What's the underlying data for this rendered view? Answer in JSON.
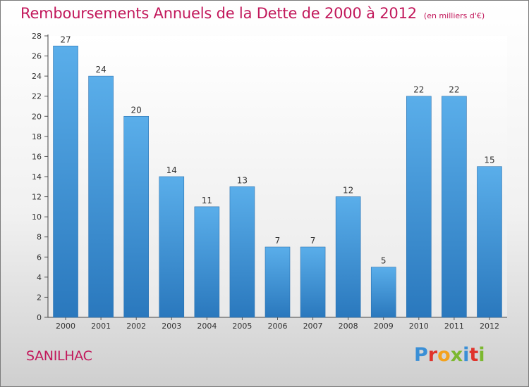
{
  "header": {
    "title": "Remboursements Annuels de la Dette de 2000 à 2012",
    "subtitle": "(en milliers d'€)"
  },
  "footer": {
    "commune": "SANILHAC",
    "logo_text": "Proxiti",
    "logo_colors": [
      "#3a8fd6",
      "#e0342c",
      "#f4a21d",
      "#7cb82f",
      "#3a8fd6",
      "#e0342c",
      "#7cb82f"
    ]
  },
  "chart_data": {
    "type": "bar",
    "title": "Remboursements Annuels de la Dette de 2000 à 2012",
    "subtitle": "(en milliers d'€)",
    "categories": [
      "2000",
      "2001",
      "2002",
      "2003",
      "2004",
      "2005",
      "2006",
      "2007",
      "2008",
      "2009",
      "2010",
      "2011",
      "2012"
    ],
    "values": [
      27,
      24,
      20,
      14,
      11,
      13,
      7,
      7,
      12,
      5,
      22,
      22,
      15
    ],
    "data_labels": [
      "27",
      "24",
      "20",
      "14",
      "11",
      "13",
      "7",
      "7",
      "12",
      "5",
      "22",
      "22",
      "15"
    ],
    "y_ticks": [
      "0",
      "2",
      "4",
      "6",
      "8",
      "10",
      "12",
      "14",
      "16",
      "18",
      "20",
      "22",
      "24",
      "26",
      "28"
    ],
    "ylim": [
      0,
      28
    ],
    "grid": false,
    "bar_color": "#3d8fd0"
  }
}
